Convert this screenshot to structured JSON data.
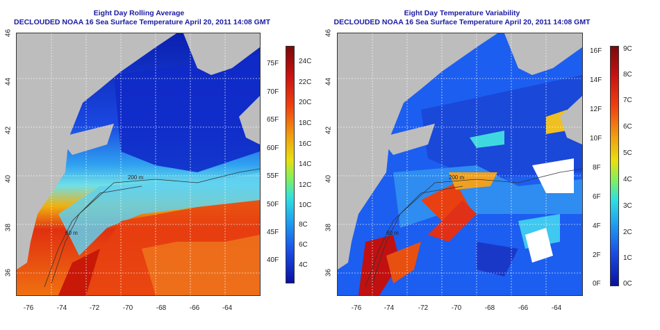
{
  "left": {
    "title": "Eight Day Rolling Average",
    "subtitle": "DECLOUDED NOAA 16 Sea Surface Temperature April 20, 2011 14:08 GMT",
    "yticks": [
      "46",
      "44",
      "42",
      "40",
      "38",
      "36"
    ],
    "xticks": [
      "-76",
      "-74",
      "-72",
      "-70",
      "-68",
      "-66",
      "-64"
    ],
    "cbar_f": [
      "75F",
      "70F",
      "65F",
      "60F",
      "55F",
      "50F",
      "45F",
      "40F"
    ],
    "cbar_c": [
      "24C",
      "22C",
      "20C",
      "18C",
      "16C",
      "14C",
      "12C",
      "10C",
      "8C",
      "6C",
      "4C"
    ],
    "contour_labels": [
      "200 m",
      "60 m"
    ]
  },
  "right": {
    "title": "Eight Day Temperature Variability",
    "subtitle": "DECLOUDED NOAA 16 Sea Surface Temperature April 20, 2011 14:08 GMT",
    "yticks": [
      "46",
      "44",
      "42",
      "40",
      "38",
      "36"
    ],
    "xticks": [
      "-76",
      "-74",
      "-72",
      "-70",
      "-68",
      "-66",
      "-64"
    ],
    "cbar_f": [
      "16F",
      "14F",
      "12F",
      "10F",
      "8F",
      "6F",
      "4F",
      "2F",
      "0F"
    ],
    "cbar_c": [
      "9C",
      "8C",
      "7C",
      "6C",
      "5C",
      "4C",
      "3C",
      "2C",
      "1C",
      "0C"
    ],
    "contour_labels": [
      "200 m",
      "60 m"
    ]
  }
}
